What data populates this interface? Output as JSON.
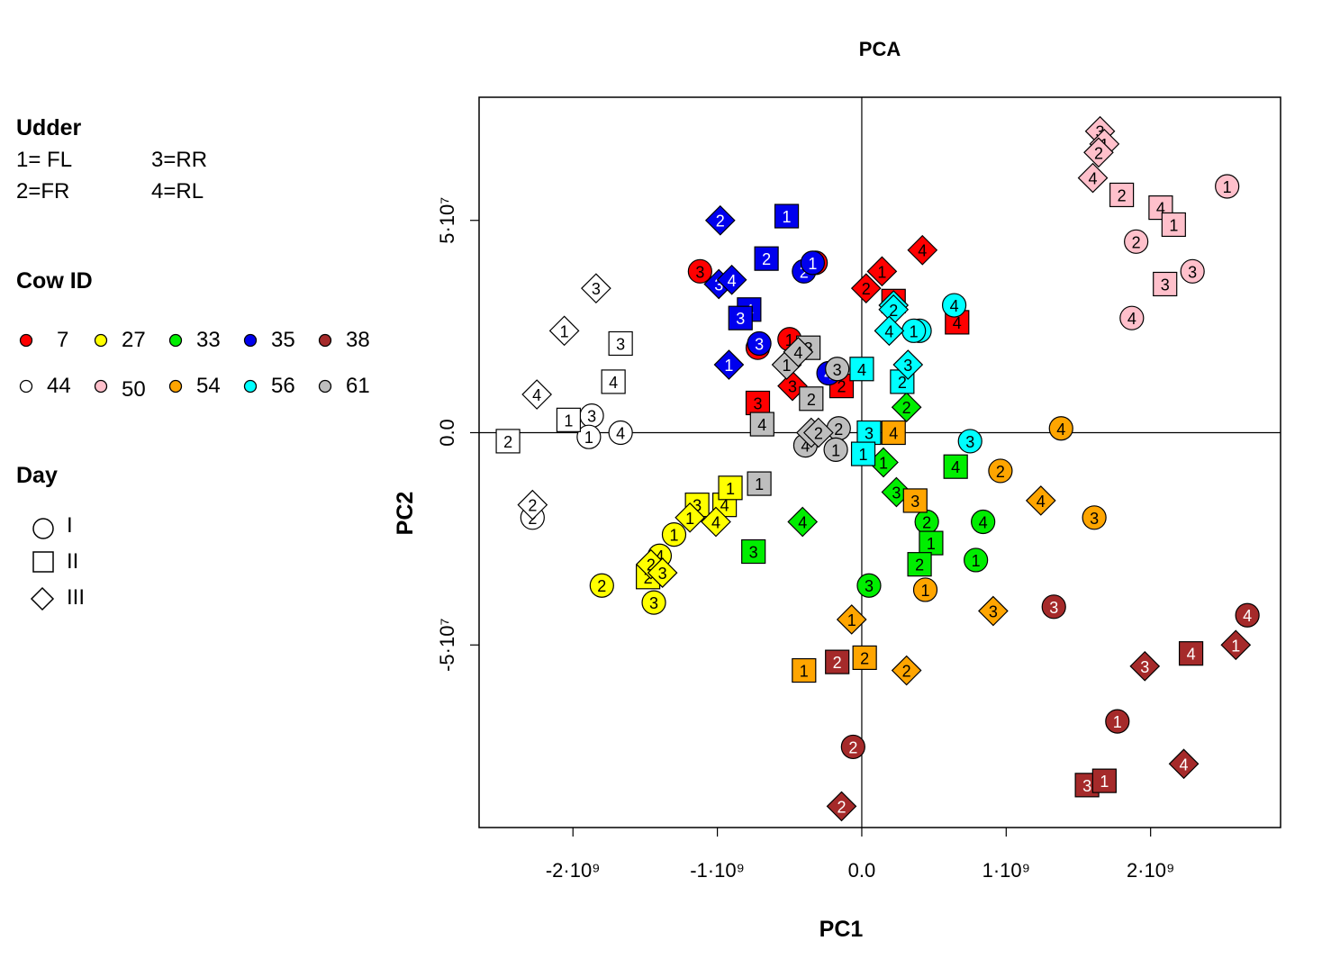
{
  "chart_data": {
    "type": "scatter",
    "title": "PCA",
    "xlabel": "PC1",
    "ylabel": "PC2",
    "xlim": [
      -2650000000.0,
      2900000000.0
    ],
    "ylim": [
      -93000000.0,
      79000000.0
    ],
    "grid": false,
    "reference_lines": {
      "x": 0,
      "y": 0
    },
    "x_ticks": [
      {
        "value": -2000000000.0,
        "label": "-2·10⁹"
      },
      {
        "value": -1000000000.0,
        "label": "-1·10⁹"
      },
      {
        "value": 0,
        "label": "0.0"
      },
      {
        "value": 1000000000.0,
        "label": "1·10⁹"
      },
      {
        "value": 2000000000.0,
        "label": "2·10⁹"
      }
    ],
    "y_ticks": [
      {
        "value": -50000000.0,
        "label": "-5·10⁷"
      },
      {
        "value": 0,
        "label": "0.0"
      },
      {
        "value": 50000000.0,
        "label": "5·10⁷"
      }
    ],
    "point_label_meaning": "udder quarter",
    "cows": [
      {
        "id": "7",
        "color": "#ff0000"
      },
      {
        "id": "27",
        "color": "#ffff00"
      },
      {
        "id": "33",
        "color": "#00ee00"
      },
      {
        "id": "35",
        "color": "#0000ee"
      },
      {
        "id": "38",
        "color": "#a52a2a"
      },
      {
        "id": "44",
        "color": "#ffffff"
      },
      {
        "id": "50",
        "color": "#ffc0cb"
      },
      {
        "id": "54",
        "color": "#ffa500"
      },
      {
        "id": "56",
        "color": "#00ffff"
      },
      {
        "id": "61",
        "color": "#bebebe"
      }
    ],
    "day_shapes": {
      "I": "circle",
      "II": "square",
      "III": "diamond"
    },
    "points": [
      {
        "cow": "7",
        "day": "I",
        "udder": 3,
        "x": -1120000000.0,
        "y": 38000000.0
      },
      {
        "cow": "7",
        "day": "I",
        "udder": 2,
        "x": -720000000.0,
        "y": 20000000.0
      },
      {
        "cow": "7",
        "day": "I",
        "udder": 1,
        "x": -500000000.0,
        "y": 22000000.0
      },
      {
        "cow": "7",
        "day": "I",
        "udder": 4,
        "x": -320000000.0,
        "y": 40000000.0
      },
      {
        "cow": "7",
        "day": "II",
        "udder": 3,
        "x": -720000000.0,
        "y": 7000000.0
      },
      {
        "cow": "7",
        "day": "II",
        "udder": 2,
        "x": -140000000.0,
        "y": 11000000.0
      },
      {
        "cow": "7",
        "day": "II",
        "udder": 3,
        "x": 220000000.0,
        "y": 31000000.0
      },
      {
        "cow": "7",
        "day": "II",
        "udder": 4,
        "x": 660000000.0,
        "y": 26000000.0
      },
      {
        "cow": "7",
        "day": "III",
        "udder": 3,
        "x": -480000000.0,
        "y": 11000000.0
      },
      {
        "cow": "7",
        "day": "III",
        "udder": 2,
        "x": 30000000.0,
        "y": 34000000.0
      },
      {
        "cow": "7",
        "day": "III",
        "udder": 1,
        "x": 140000000.0,
        "y": 38000000.0
      },
      {
        "cow": "7",
        "day": "III",
        "udder": 4,
        "x": 420000000.0,
        "y": 43000000.0
      },
      {
        "cow": "27",
        "day": "I",
        "udder": 2,
        "x": -1800000000.0,
        "y": -36000000.0
      },
      {
        "cow": "27",
        "day": "I",
        "udder": 3,
        "x": -1440000000.0,
        "y": -40000000.0
      },
      {
        "cow": "27",
        "day": "I",
        "udder": 4,
        "x": -1400000000.0,
        "y": -29000000.0
      },
      {
        "cow": "27",
        "day": "I",
        "udder": 1,
        "x": -1300000000.0,
        "y": -24000000.0
      },
      {
        "cow": "27",
        "day": "II",
        "udder": 2,
        "x": -1480000000.0,
        "y": -34000000.0
      },
      {
        "cow": "27",
        "day": "II",
        "udder": 3,
        "x": -1140000000.0,
        "y": -17000000.0
      },
      {
        "cow": "27",
        "day": "II",
        "udder": 4,
        "x": -950000000.0,
        "y": -17000000.0
      },
      {
        "cow": "27",
        "day": "II",
        "udder": 1,
        "x": -910000000.0,
        "y": -13000000.0
      },
      {
        "cow": "27",
        "day": "III",
        "udder": 2,
        "x": -1460000000.0,
        "y": -31000000.0
      },
      {
        "cow": "27",
        "day": "III",
        "udder": 3,
        "x": -1380000000.0,
        "y": -33000000.0
      },
      {
        "cow": "27",
        "day": "III",
        "udder": 1,
        "x": -1190000000.0,
        "y": -20000000.0
      },
      {
        "cow": "27",
        "day": "III",
        "udder": 4,
        "x": -1010000000.0,
        "y": -21000000.0
      },
      {
        "cow": "33",
        "day": "I",
        "udder": 3,
        "x": 50000000.0,
        "y": -36000000.0
      },
      {
        "cow": "33",
        "day": "I",
        "udder": 2,
        "x": 450000000.0,
        "y": -21000000.0
      },
      {
        "cow": "33",
        "day": "I",
        "udder": 4,
        "x": 840000000.0,
        "y": -21000000.0
      },
      {
        "cow": "33",
        "day": "I",
        "udder": 1,
        "x": 790000000.0,
        "y": -30000000.0
      },
      {
        "cow": "33",
        "day": "II",
        "udder": 3,
        "x": -750000000.0,
        "y": -28000000.0
      },
      {
        "cow": "33",
        "day": "II",
        "udder": 1,
        "x": 480000000.0,
        "y": -26000000.0
      },
      {
        "cow": "33",
        "day": "II",
        "udder": 2,
        "x": 400000000.0,
        "y": -31000000.0
      },
      {
        "cow": "33",
        "day": "II",
        "udder": 4,
        "x": 650000000.0,
        "y": -8000000.0
      },
      {
        "cow": "33",
        "day": "III",
        "udder": 4,
        "x": -410000000.0,
        "y": -21000000.0
      },
      {
        "cow": "33",
        "day": "III",
        "udder": 1,
        "x": 150000000.0,
        "y": -7000000.0
      },
      {
        "cow": "33",
        "day": "III",
        "udder": 3,
        "x": 240000000.0,
        "y": -14000000.0
      },
      {
        "cow": "33",
        "day": "III",
        "udder": 2,
        "x": 310000000.0,
        "y": 6000000.0
      },
      {
        "cow": "35",
        "day": "I",
        "udder": 3,
        "x": -710000000.0,
        "y": 21000000.0
      },
      {
        "cow": "35",
        "day": "I",
        "udder": 2,
        "x": -400000000.0,
        "y": 38000000.0
      },
      {
        "cow": "35",
        "day": "I",
        "udder": 1,
        "x": -340000000.0,
        "y": 40000000.0
      },
      {
        "cow": "35",
        "day": "I",
        "udder": 4,
        "x": -230000000.0,
        "y": 14000000.0
      },
      {
        "cow": "35",
        "day": "II",
        "udder": 1,
        "x": -520000000.0,
        "y": 51000000.0
      },
      {
        "cow": "35",
        "day": "II",
        "udder": 2,
        "x": -660000000.0,
        "y": 41000000.0
      },
      {
        "cow": "35",
        "day": "II",
        "udder": 4,
        "x": -780000000.0,
        "y": 29000000.0
      },
      {
        "cow": "35",
        "day": "II",
        "udder": 3,
        "x": -840000000.0,
        "y": 27000000.0
      },
      {
        "cow": "35",
        "day": "III",
        "udder": 2,
        "x": -980000000.0,
        "y": 50000000.0
      },
      {
        "cow": "35",
        "day": "III",
        "udder": 3,
        "x": -990000000.0,
        "y": 35000000.0
      },
      {
        "cow": "35",
        "day": "III",
        "udder": 4,
        "x": -900000000.0,
        "y": 36000000.0
      },
      {
        "cow": "35",
        "day": "III",
        "udder": 1,
        "x": -920000000.0,
        "y": 16000000.0
      },
      {
        "cow": "38",
        "day": "I",
        "udder": 2,
        "x": -60000000.0,
        "y": -74000000.0
      },
      {
        "cow": "38",
        "day": "I",
        "udder": 3,
        "x": 1330000000.0,
        "y": -41000000.0
      },
      {
        "cow": "38",
        "day": "I",
        "udder": 1,
        "x": 1770000000.0,
        "y": -68000000.0
      },
      {
        "cow": "38",
        "day": "I",
        "udder": 4,
        "x": 2670000000.0,
        "y": -43000000.0
      },
      {
        "cow": "38",
        "day": "II",
        "udder": 2,
        "x": -170000000.0,
        "y": -54000000.0
      },
      {
        "cow": "38",
        "day": "II",
        "udder": 4,
        "x": 2280000000.0,
        "y": -52000000.0
      },
      {
        "cow": "38",
        "day": "II",
        "udder": 3,
        "x": 1560000000.0,
        "y": -83000000.0
      },
      {
        "cow": "38",
        "day": "II",
        "udder": 1,
        "x": 1680000000.0,
        "y": -82000000.0
      },
      {
        "cow": "38",
        "day": "III",
        "udder": 2,
        "x": -140000000.0,
        "y": -88000000.0
      },
      {
        "cow": "38",
        "day": "III",
        "udder": 3,
        "x": 1960000000.0,
        "y": -55000000.0
      },
      {
        "cow": "38",
        "day": "III",
        "udder": 1,
        "x": 2590000000.0,
        "y": -50000000.0
      },
      {
        "cow": "38",
        "day": "III",
        "udder": 4,
        "x": 2230000000.0,
        "y": -78000000.0
      },
      {
        "cow": "44",
        "day": "I",
        "udder": 3,
        "x": -1870000000.0,
        "y": 4000000.0
      },
      {
        "cow": "44",
        "day": "I",
        "udder": 1,
        "x": -1890000000.0,
        "y": -1000000.0
      },
      {
        "cow": "44",
        "day": "I",
        "udder": 4,
        "x": -1670000000.0,
        "y": 0.0
      },
      {
        "cow": "44",
        "day": "I",
        "udder": 2,
        "x": -2280000000.0,
        "y": -20000000.0
      },
      {
        "cow": "44",
        "day": "II",
        "udder": 3,
        "x": -1670000000.0,
        "y": 21000000.0
      },
      {
        "cow": "44",
        "day": "II",
        "udder": 4,
        "x": -1720000000.0,
        "y": 12000000.0
      },
      {
        "cow": "44",
        "day": "II",
        "udder": 1,
        "x": -2030000000.0,
        "y": 3000000.0
      },
      {
        "cow": "44",
        "day": "II",
        "udder": 2,
        "x": -2450000000.0,
        "y": -2000000.0
      },
      {
        "cow": "44",
        "day": "III",
        "udder": 3,
        "x": -1840000000.0,
        "y": 34000000.0
      },
      {
        "cow": "44",
        "day": "III",
        "udder": 1,
        "x": -2060000000.0,
        "y": 24000000.0
      },
      {
        "cow": "44",
        "day": "III",
        "udder": 4,
        "x": -2250000000.0,
        "y": 9000000.0
      },
      {
        "cow": "44",
        "day": "III",
        "udder": 2,
        "x": -2280000000.0,
        "y": -17000000.0
      },
      {
        "cow": "50",
        "day": "I",
        "udder": 1,
        "x": 2530000000.0,
        "y": 58000000.0
      },
      {
        "cow": "50",
        "day": "I",
        "udder": 2,
        "x": 1900000000.0,
        "y": 45000000.0
      },
      {
        "cow": "50",
        "day": "I",
        "udder": 3,
        "x": 2290000000.0,
        "y": 38000000.0
      },
      {
        "cow": "50",
        "day": "I",
        "udder": 4,
        "x": 1870000000.0,
        "y": 27000000.0
      },
      {
        "cow": "50",
        "day": "II",
        "udder": 2,
        "x": 1800000000.0,
        "y": 56000000.0
      },
      {
        "cow": "50",
        "day": "II",
        "udder": 4,
        "x": 2070000000.0,
        "y": 53000000.0
      },
      {
        "cow": "50",
        "day": "II",
        "udder": 1,
        "x": 2160000000.0,
        "y": 49000000.0
      },
      {
        "cow": "50",
        "day": "II",
        "udder": 3,
        "x": 2100000000.0,
        "y": 35000000.0
      },
      {
        "cow": "50",
        "day": "III",
        "udder": 3,
        "x": 1650000000.0,
        "y": 71000000.0
      },
      {
        "cow": "50",
        "day": "III",
        "udder": 1,
        "x": 1680000000.0,
        "y": 68000000.0
      },
      {
        "cow": "50",
        "day": "III",
        "udder": 2,
        "x": 1640000000.0,
        "y": 66000000.0
      },
      {
        "cow": "50",
        "day": "III",
        "udder": 4,
        "x": 1600000000.0,
        "y": 60000000.0
      },
      {
        "cow": "54",
        "day": "I",
        "udder": 4,
        "x": 1380000000.0,
        "y": 1000000.0
      },
      {
        "cow": "54",
        "day": "I",
        "udder": 2,
        "x": 960000000.0,
        "y": -9000000.0
      },
      {
        "cow": "54",
        "day": "I",
        "udder": 3,
        "x": 1610000000.0,
        "y": -20000000.0
      },
      {
        "cow": "54",
        "day": "I",
        "udder": 1,
        "x": 440000000.0,
        "y": -37000000.0
      },
      {
        "cow": "54",
        "day": "II",
        "udder": 4,
        "x": 220000000.0,
        "y": 0.0
      },
      {
        "cow": "54",
        "day": "II",
        "udder": 3,
        "x": 370000000.0,
        "y": -16000000.0
      },
      {
        "cow": "54",
        "day": "II",
        "udder": 2,
        "x": 20000000.0,
        "y": -53000000.0
      },
      {
        "cow": "54",
        "day": "II",
        "udder": 1,
        "x": -400000000.0,
        "y": -56000000.0
      },
      {
        "cow": "54",
        "day": "III",
        "udder": 4,
        "x": 1240000000.0,
        "y": -16000000.0
      },
      {
        "cow": "54",
        "day": "III",
        "udder": 3,
        "x": 910000000.0,
        "y": -42000000.0
      },
      {
        "cow": "54",
        "day": "III",
        "udder": 1,
        "x": -70000000.0,
        "y": -44000000.0
      },
      {
        "cow": "54",
        "day": "III",
        "udder": 2,
        "x": 310000000.0,
        "y": -56000000.0
      },
      {
        "cow": "56",
        "day": "I",
        "udder": 4,
        "x": 640000000.0,
        "y": 30000000.0
      },
      {
        "cow": "56",
        "day": "I",
        "udder": 2,
        "x": 400000000.0,
        "y": 24000000.0
      },
      {
        "cow": "56",
        "day": "I",
        "udder": 1,
        "x": 360000000.0,
        "y": 24000000.0
      },
      {
        "cow": "56",
        "day": "I",
        "udder": 3,
        "x": 750000000.0,
        "y": -2000000.0
      },
      {
        "cow": "56",
        "day": "II",
        "udder": 3,
        "x": 50000000.0,
        "y": 0.0
      },
      {
        "cow": "56",
        "day": "II",
        "udder": 4,
        "x": 0.0,
        "y": 15000000.0
      },
      {
        "cow": "56",
        "day": "II",
        "udder": 2,
        "x": 280000000.0,
        "y": 12000000.0
      },
      {
        "cow": "56",
        "day": "II",
        "udder": 1,
        "x": 10000000.0,
        "y": -5000000.0
      },
      {
        "cow": "56",
        "day": "III",
        "udder": 1,
        "x": 220000000.0,
        "y": 30000000.0
      },
      {
        "cow": "56",
        "day": "III",
        "udder": 2,
        "x": 220000000.0,
        "y": 29000000.0
      },
      {
        "cow": "56",
        "day": "III",
        "udder": 4,
        "x": 190000000.0,
        "y": 24000000.0
      },
      {
        "cow": "56",
        "day": "III",
        "udder": 3,
        "x": 320000000.0,
        "y": 16000000.0
      },
      {
        "cow": "61",
        "day": "I",
        "udder": 3,
        "x": -170000000.0,
        "y": 15000000.0
      },
      {
        "cow": "61",
        "day": "I",
        "udder": 2,
        "x": -160000000.0,
        "y": 1000000.0
      },
      {
        "cow": "61",
        "day": "I",
        "udder": 4,
        "x": -390000000.0,
        "y": -3000000.0
      },
      {
        "cow": "61",
        "day": "I",
        "udder": 1,
        "x": -180000000.0,
        "y": -4000000.0
      },
      {
        "cow": "61",
        "day": "II",
        "udder": 1,
        "x": -710000000.0,
        "y": -12000000.0
      },
      {
        "cow": "61",
        "day": "II",
        "udder": 4,
        "x": -690000000.0,
        "y": 2000000.0
      },
      {
        "cow": "61",
        "day": "II",
        "udder": 2,
        "x": -350000000.0,
        "y": 8000000.0
      },
      {
        "cow": "61",
        "day": "II",
        "udder": 3,
        "x": -370000000.0,
        "y": 20000000.0
      },
      {
        "cow": "61",
        "day": "III",
        "udder": 1,
        "x": -520000000.0,
        "y": 16000000.0
      },
      {
        "cow": "61",
        "day": "III",
        "udder": 4,
        "x": -440000000.0,
        "y": 19000000.0
      },
      {
        "cow": "61",
        "day": "III",
        "udder": 3,
        "x": -350000000.0,
        "y": 0.0
      },
      {
        "cow": "61",
        "day": "III",
        "udder": 2,
        "x": -300000000.0,
        "y": 0.0
      }
    ]
  },
  "legend": {
    "udder": {
      "title": "Udder",
      "items": [
        "1= FL",
        "3=RR",
        "2=FR",
        "4=RL"
      ]
    },
    "cow": {
      "title": "Cow ID",
      "labels": [
        "7",
        "27",
        "33",
        "35",
        "38",
        "44",
        "50",
        "54",
        "56",
        "61"
      ]
    },
    "day": {
      "title": "Day",
      "items": [
        {
          "label": "I",
          "shape": "circle"
        },
        {
          "label": "II",
          "shape": "square"
        },
        {
          "label": "III",
          "shape": "diamond"
        }
      ]
    }
  }
}
